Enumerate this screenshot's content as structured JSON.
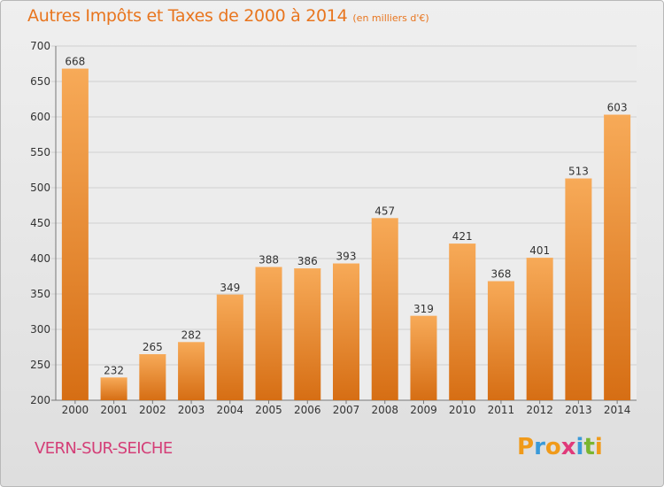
{
  "chart_data": {
    "type": "bar",
    "title": "Autres Impôts et Taxes de 2000 à 2014",
    "subtitle": "(en milliers d'€)",
    "categories": [
      "2000",
      "2001",
      "2002",
      "2003",
      "2004",
      "2005",
      "2006",
      "2007",
      "2008",
      "2009",
      "2010",
      "2011",
      "2012",
      "2013",
      "2014"
    ],
    "values": [
      668,
      232,
      265,
      282,
      349,
      388,
      386,
      393,
      457,
      319,
      421,
      368,
      401,
      513,
      603
    ],
    "data_labels": [
      "668",
      "232",
      "265",
      "282",
      "349",
      "388",
      "386",
      "393",
      "457",
      "319",
      "421",
      "368",
      "401",
      "513",
      "603"
    ],
    "ylim": [
      200,
      700
    ],
    "yticks": [
      200,
      250,
      300,
      350,
      400,
      450,
      500,
      550,
      600,
      650,
      700
    ],
    "ytick_labels": [
      "200",
      "250",
      "300",
      "350",
      "400",
      "450",
      "500",
      "550",
      "600",
      "650",
      "700"
    ],
    "grid": true,
    "bar_color": "#f08a2c",
    "bar_color_light": "#f7aa58",
    "bar_color_dark": "#d66e14"
  },
  "footer": {
    "city": "VERN-SUR-SEICHE",
    "logo": {
      "letters": [
        "P",
        "r",
        "o",
        "x",
        "i",
        "t",
        "i"
      ],
      "colors": [
        "#f09a1a",
        "#3a9ad9",
        "#f09a1a",
        "#e03a7a",
        "#3a9ad9",
        "#7ab530",
        "#f09a1a"
      ]
    }
  }
}
